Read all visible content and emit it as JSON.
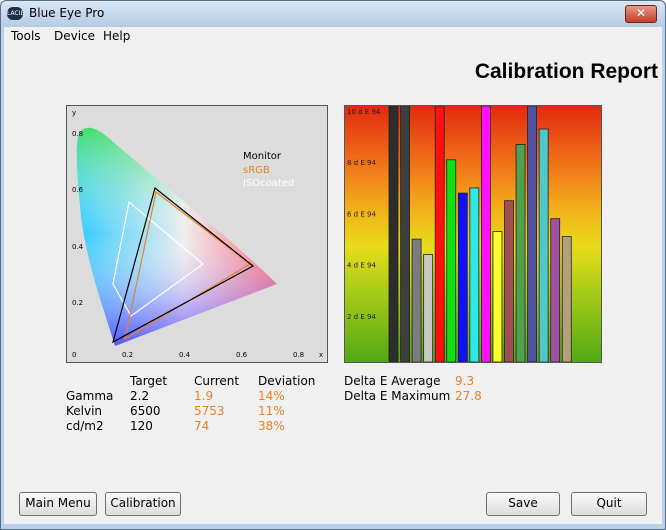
{
  "window": {
    "title": "Blue Eye Pro",
    "app_icon_text": "LACIE",
    "close_glyph": "✕"
  },
  "menu": [
    "Tools",
    "Device",
    "Help"
  ],
  "report": {
    "title": "Calibration Report"
  },
  "cie_plot": {
    "axis_x_label": "x",
    "axis_y_label": "y",
    "x_ticks": [
      "0",
      "0.2",
      "0.4",
      "0.6",
      "0.8"
    ],
    "y_ticks": [
      "0.2",
      "0.4",
      "0.6",
      "0.8"
    ],
    "legend": [
      {
        "label": "Monitor",
        "color": "#000000"
      },
      {
        "label": "sRGB",
        "color": "#e6822a"
      },
      {
        "label": "ISOcoated",
        "color": "#ffffff"
      }
    ]
  },
  "chart_data": {
    "type": "bar",
    "title": "",
    "ylabel": "",
    "ylim": [
      0,
      10
    ],
    "y_ticks": [
      "2 d E 94",
      "4 d E 94",
      "6 d E 94",
      "8 d E 94",
      "10 d E 94"
    ],
    "series": [
      {
        "values": [
          10,
          10,
          4.8,
          4.2,
          10,
          7.9,
          6.6,
          6.8,
          10,
          5.1,
          6.3,
          8.5,
          10,
          9.1,
          5.6,
          4.9
        ],
        "colors": [
          "#2d2d2d",
          "#3e3e3e",
          "#7c7c7c",
          "#c8c8c8",
          "#ff1010",
          "#10e010",
          "#1010ff",
          "#30e6e6",
          "#ff10ff",
          "#ffff30",
          "#a05050",
          "#50a050",
          "#5050a0",
          "#50c8c8",
          "#a050a0",
          "#b4a07a"
        ]
      }
    ]
  },
  "measurements": {
    "headers": [
      "Target",
      "Current",
      "Deviation"
    ],
    "rows": [
      {
        "label": "Gamma",
        "target": "2.2",
        "current": "1.9",
        "deviation": "14%"
      },
      {
        "label": "Kelvin",
        "target": "6500",
        "current": "5753",
        "deviation": "11%"
      },
      {
        "label": "cd/m2",
        "target": "120",
        "current": "74",
        "deviation": "38%"
      }
    ]
  },
  "delta_e": {
    "average_label": "Delta E Average",
    "average_value": "9.3",
    "maximum_label": "Delta E Maximum",
    "maximum_value": "27.8"
  },
  "buttons": {
    "main_menu": "Main Menu",
    "calibration": "Calibration",
    "save": "Save",
    "quit": "Quit"
  }
}
